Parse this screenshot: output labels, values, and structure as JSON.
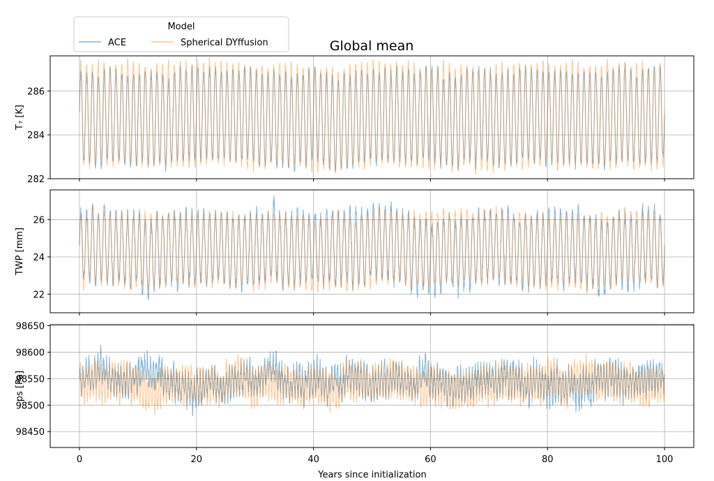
{
  "title": "Global mean",
  "legend": {
    "title": "Model",
    "entries": [
      {
        "label": "ACE",
        "color": "#1f77b4"
      },
      {
        "label": "Spherical DYffusion",
        "color": "#ff7f0e"
      }
    ]
  },
  "xlabel": "Years since initialization",
  "chart_data": [
    {
      "type": "line",
      "ylabel": "T₇ [K]",
      "xlim": [
        -5,
        105
      ],
      "ylim": [
        282,
        287.6
      ],
      "xticks": [
        0,
        20,
        40,
        60,
        80,
        100
      ],
      "yticks": [
        282,
        284,
        286
      ],
      "grid": true,
      "series": [
        {
          "name": "ACE",
          "mean": 284.8,
          "amplitude": 2.05,
          "noise": 0.35,
          "cycles_per_year": 1
        },
        {
          "name": "Spherical DYffusion",
          "mean": 284.9,
          "amplitude": 2.3,
          "noise": 0.3,
          "cycles_per_year": 1
        }
      ],
      "x_range": [
        0,
        100
      ]
    },
    {
      "type": "line",
      "ylabel": "TWP [mm]",
      "xlim": [
        -5,
        105
      ],
      "ylim": [
        21.0,
        27.6
      ],
      "xticks": [
        0,
        20,
        40,
        60,
        80,
        100
      ],
      "yticks": [
        22,
        24,
        26
      ],
      "grid": true,
      "series": [
        {
          "name": "ACE",
          "mean": 24.4,
          "amplitude": 1.9,
          "noise": 0.55,
          "cycles_per_year": 1
        },
        {
          "name": "Spherical DYffusion",
          "mean": 24.4,
          "amplitude": 1.9,
          "noise": 0.35,
          "cycles_per_year": 1
        }
      ],
      "x_range": [
        0,
        100
      ]
    },
    {
      "type": "line",
      "ylabel": "ps [Pa]",
      "xlim": [
        -5,
        105
      ],
      "ylim": [
        98420,
        98652
      ],
      "xticks": [
        0,
        20,
        40,
        60,
        80,
        100
      ],
      "xticklabels": [
        "0",
        "20",
        "40",
        "60",
        "80",
        "100"
      ],
      "yticks": [
        98450,
        98500,
        98550,
        98600,
        98650
      ],
      "grid": true,
      "series": [
        {
          "name": "ACE",
          "mean": 98545,
          "amplitude": 22,
          "noise": 28,
          "cycles_per_year": 2
        },
        {
          "name": "Spherical DYffusion",
          "mean": 98540,
          "amplitude": 30,
          "noise": 18,
          "cycles_per_year": 2
        }
      ],
      "x_range": [
        0,
        100
      ]
    }
  ]
}
